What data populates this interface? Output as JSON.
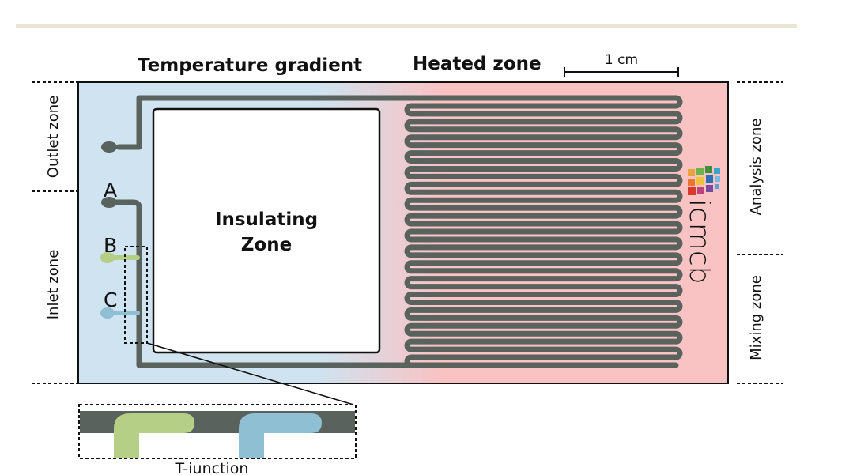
{
  "labels": {
    "temperature_gradient": "Temperature gradient",
    "heated_zone": "Heated zone",
    "scale_bar": "1 cm",
    "outlet_zone": "Outlet zone",
    "inlet_zone": "Inlet zone",
    "analysis_zone": "Analysis zone",
    "mixing_zone": "Mixing zone",
    "insulating_line1": "Insulating",
    "insulating_line2": "Zone",
    "inlet_a": "A",
    "inlet_b": "B",
    "inlet_c": "C",
    "t_junction": "T-iunction",
    "logo_text": "icmcb"
  },
  "colors": {
    "cold_zone": "#cfe3f0",
    "heated_zone": "#f9c2c3",
    "channel": "#5a625d",
    "inlet_b_fluid": "#b5cf86",
    "inlet_c_fluid": "#8fbfd3",
    "logo_text": "#8aa0be",
    "rule": "#e8e5d3"
  },
  "channel": {
    "serpentine_turns": 17
  }
}
